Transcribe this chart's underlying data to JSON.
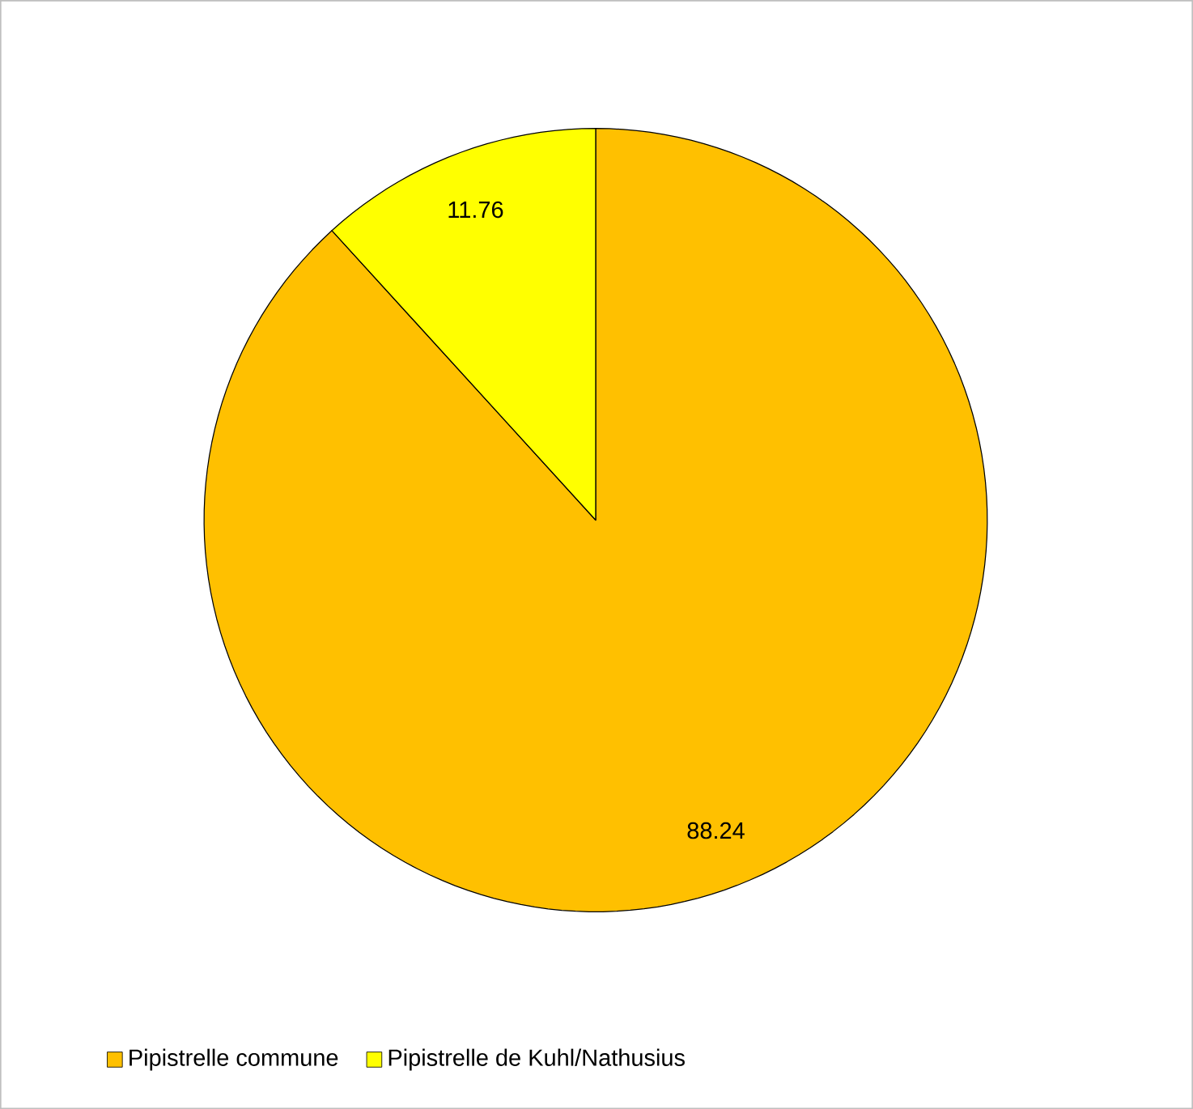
{
  "chart_data": {
    "type": "pie",
    "categories": [
      "Pipistrelle commune",
      "Pipistrelle de Kuhl/Nathusius"
    ],
    "values": [
      88.24,
      11.76
    ],
    "colors": [
      "#ffc000",
      "#ffff00"
    ],
    "data_labels": true,
    "legend": "bottom"
  }
}
